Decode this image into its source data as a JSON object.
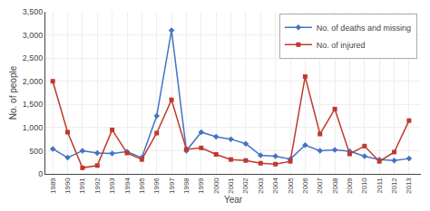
{
  "chart_data": {
    "type": "line",
    "xlabel": "Year",
    "ylabel": "No. of people",
    "x": [
      1989,
      1990,
      1991,
      1992,
      1993,
      1994,
      1995,
      1996,
      1997,
      1998,
      1999,
      2000,
      2001,
      2002,
      2003,
      2004,
      2005,
      2006,
      2007,
      2008,
      2009,
      2010,
      2011,
      2012,
      2013
    ],
    "series": [
      {
        "name": "No. of deaths and missing",
        "color": "#4472C4",
        "marker": "diamond",
        "values": [
          540,
          350,
          500,
          450,
          440,
          480,
          350,
          1250,
          3100,
          500,
          900,
          800,
          750,
          650,
          400,
          380,
          320,
          620,
          500,
          520,
          490,
          380,
          310,
          290,
          330
        ]
      },
      {
        "name": "No. of injured",
        "color": "#C0392B",
        "marker": "square",
        "values": [
          2000,
          900,
          130,
          180,
          950,
          450,
          310,
          880,
          1600,
          530,
          560,
          420,
          310,
          290,
          230,
          210,
          270,
          2100,
          860,
          1400,
          430,
          600,
          270,
          470,
          1150
        ]
      }
    ],
    "xlim": [
      1988.5,
      2013.8
    ],
    "xticks": [
      1989,
      1990,
      1991,
      1992,
      1993,
      1994,
      1995,
      1996,
      1997,
      1998,
      1999,
      2000,
      2001,
      2002,
      2003,
      2004,
      2005,
      2006,
      2007,
      2008,
      2009,
      2010,
      2011,
      2012,
      2013
    ],
    "ylim": [
      0,
      3500
    ],
    "yticks": [
      0,
      500,
      {
        "value": 1000,
        "label": "1,000"
      },
      {
        "value": 1500,
        "label": "1,500"
      },
      {
        "value": 2000,
        "label": "2,000"
      },
      {
        "value": 2500,
        "label": "2,500"
      },
      {
        "value": 3000,
        "label": "3,000"
      },
      {
        "value": 3500,
        "label": "3,500"
      }
    ],
    "grid": true,
    "legend": "upper right"
  }
}
